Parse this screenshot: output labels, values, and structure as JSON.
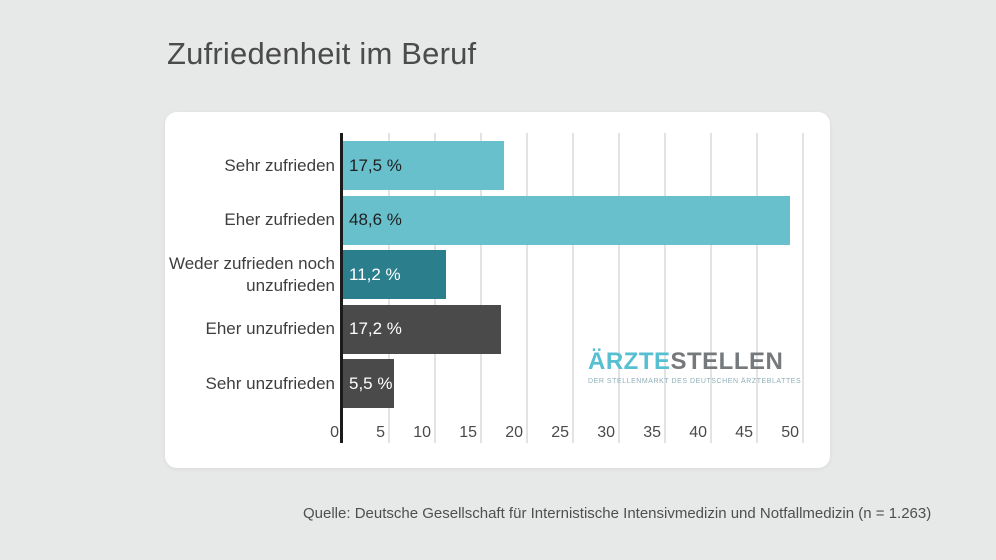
{
  "page": {
    "title": "Zufriedenheit im Beruf",
    "source": "Quelle: Deutsche Gesellschaft für Internistische Intensivmedizin und Notfallmedizin (n = 1.263)"
  },
  "logo": {
    "text_primary": "ÄRZTE",
    "text_secondary": "STELLEN",
    "tagline": "DER STELLENMARKT DES DEUTSCHEN ÄRZTEBLATTES",
    "color_primary": "#56bfd2",
    "color_secondary": "#75797c"
  },
  "chart_data": {
    "type": "bar",
    "orientation": "horizontal",
    "title": "Zufriedenheit im Beruf",
    "categories": [
      "Sehr zufrieden",
      "Eher zufrieden",
      "Weder zufrieden noch unzufrieden",
      "Eher unzufrieden",
      "Sehr unzufrieden"
    ],
    "values": [
      17.5,
      48.6,
      11.2,
      17.2,
      5.5
    ],
    "value_labels": [
      "17,5 %",
      "48,6 %",
      "11,2 %",
      "17,2 %",
      "5,5 %"
    ],
    "bar_colors": [
      "#68c0cd",
      "#68c0cd",
      "#2b7f8d",
      "#4a4a4a",
      "#4a4a4a"
    ],
    "value_label_colors": [
      "#1f1f1f",
      "#1f1f1f",
      "#ffffff",
      "#ffffff",
      "#ffffff"
    ],
    "xlabel": "",
    "ylabel": "",
    "unit": "%",
    "xlim": [
      0,
      50
    ],
    "x_ticks": [
      0,
      5,
      10,
      15,
      20,
      25,
      30,
      35,
      40,
      45,
      50
    ],
    "grid": true,
    "gridline_color": "#e3e3e3",
    "axis_color": "#1b1b1b",
    "background_card": "#ffffff",
    "background_page": "#e7e8e8",
    "legend": false
  }
}
